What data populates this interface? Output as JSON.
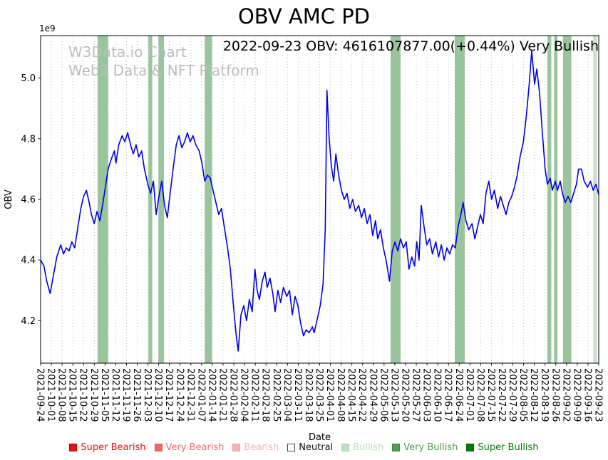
{
  "title": "OBV AMC PD",
  "subtitle": "2022-09-23 OBV: 4616107877.00(+0.44%) Very Bullish",
  "watermark": {
    "line1": "W3Data.io Chart",
    "line2": "Web3 Data & NFT Platform"
  },
  "legend": {
    "items": [
      {
        "label": "Super Bearish",
        "color": "#e81010",
        "border": "#c00000"
      },
      {
        "label": "Very Bearish",
        "color": "#f26a6a",
        "border": "#e05555"
      },
      {
        "label": "Bearish",
        "color": "#f8b4b4",
        "border": "#f0a0a0"
      },
      {
        "label": "Neutral",
        "color": "#111111",
        "swatch": "#ffffff",
        "border": "#444444"
      },
      {
        "label": "Bullish",
        "color": "#bedfbe",
        "border": "#a8d0a8"
      },
      {
        "label": "Very Bullish",
        "color": "#4d9e50",
        "border": "#3d8a40"
      },
      {
        "label": "Super Bullish",
        "color": "#077a07",
        "border": "#056005"
      }
    ]
  },
  "chart_data": {
    "type": "line",
    "title": "OBV AMC PD",
    "xlabel": "Date",
    "ylabel": "OBV",
    "y_offset_label": "1e9",
    "y_unit_multiplier": 1000000000,
    "ylim": [
      4.06,
      5.14
    ],
    "y_ticks": [
      4.2,
      4.4,
      4.6,
      4.8,
      5.0
    ],
    "grid": "vertical-dotted",
    "line_color": "#0000e6",
    "band_colors": {
      "very-bullish": "rgba(70,150,74,0.55)",
      "bullish": "rgba(150,200,150,0.5)"
    },
    "x_tick_labels": [
      "2021-09-24",
      "2021-10-01",
      "2021-10-08",
      "2021-10-15",
      "2021-10-22",
      "2021-10-29",
      "2021-11-05",
      "2021-11-12",
      "2021-11-19",
      "2021-11-26",
      "2021-12-03",
      "2021-12-10",
      "2021-12-17",
      "2021-12-24",
      "2021-12-31",
      "2022-01-07",
      "2022-01-14",
      "2022-01-21",
      "2022-01-28",
      "2022-02-04",
      "2022-02-11",
      "2022-02-18",
      "2022-02-25",
      "2022-03-04",
      "2022-03-11",
      "2022-03-18",
      "2022-03-25",
      "2022-04-01",
      "2022-04-08",
      "2022-04-15",
      "2022-04-22",
      "2022-04-29",
      "2022-05-06",
      "2022-05-13",
      "2022-05-20",
      "2022-05-27",
      "2022-06-03",
      "2022-06-10",
      "2022-06-17",
      "2022-06-24",
      "2022-07-01",
      "2022-07-08",
      "2022-07-15",
      "2022-07-22",
      "2022-07-29",
      "2022-08-05",
      "2022-08-12",
      "2022-08-19",
      "2022-08-26",
      "2022-09-02",
      "2022-09-09",
      "2022-09-16",
      "2022-09-23"
    ],
    "signal_bands": [
      {
        "from": 0.102,
        "to": 0.121,
        "level": "very-bullish"
      },
      {
        "from": 0.193,
        "to": 0.2,
        "level": "very-bullish"
      },
      {
        "from": 0.211,
        "to": 0.221,
        "level": "very-bullish"
      },
      {
        "from": 0.294,
        "to": 0.307,
        "level": "very-bullish"
      },
      {
        "from": 0.627,
        "to": 0.645,
        "level": "very-bullish"
      },
      {
        "from": 0.742,
        "to": 0.76,
        "level": "very-bullish"
      },
      {
        "from": 0.908,
        "to": 0.915,
        "level": "very-bullish"
      },
      {
        "from": 0.92,
        "to": 0.926,
        "level": "very-bullish"
      },
      {
        "from": 0.936,
        "to": 0.951,
        "level": "very-bullish"
      },
      {
        "from": 0.99,
        "to": 0.997,
        "level": "bullish"
      }
    ],
    "series": [
      {
        "name": "OBV",
        "points": [
          [
            0.0,
            4.4
          ],
          [
            0.006,
            4.38
          ],
          [
            0.011,
            4.33
          ],
          [
            0.017,
            4.29
          ],
          [
            0.023,
            4.35
          ],
          [
            0.029,
            4.41
          ],
          [
            0.036,
            4.45
          ],
          [
            0.041,
            4.42
          ],
          [
            0.046,
            4.44
          ],
          [
            0.051,
            4.43
          ],
          [
            0.056,
            4.46
          ],
          [
            0.061,
            4.44
          ],
          [
            0.066,
            4.5
          ],
          [
            0.072,
            4.57
          ],
          [
            0.077,
            4.61
          ],
          [
            0.082,
            4.63
          ],
          [
            0.087,
            4.59
          ],
          [
            0.091,
            4.55
          ],
          [
            0.096,
            4.52
          ],
          [
            0.101,
            4.56
          ],
          [
            0.106,
            4.53
          ],
          [
            0.111,
            4.58
          ],
          [
            0.116,
            4.64
          ],
          [
            0.121,
            4.7
          ],
          [
            0.126,
            4.73
          ],
          [
            0.132,
            4.76
          ],
          [
            0.135,
            4.72
          ],
          [
            0.14,
            4.78
          ],
          [
            0.146,
            4.81
          ],
          [
            0.151,
            4.79
          ],
          [
            0.156,
            4.82
          ],
          [
            0.161,
            4.78
          ],
          [
            0.166,
            4.75
          ],
          [
            0.171,
            4.78
          ],
          [
            0.176,
            4.74
          ],
          [
            0.181,
            4.76
          ],
          [
            0.186,
            4.7
          ],
          [
            0.192,
            4.65
          ],
          [
            0.197,
            4.62
          ],
          [
            0.202,
            4.66
          ],
          [
            0.207,
            4.55
          ],
          [
            0.212,
            4.61
          ],
          [
            0.217,
            4.66
          ],
          [
            0.222,
            4.58
          ],
          [
            0.227,
            4.54
          ],
          [
            0.232,
            4.62
          ],
          [
            0.238,
            4.71
          ],
          [
            0.243,
            4.78
          ],
          [
            0.248,
            4.81
          ],
          [
            0.253,
            4.77
          ],
          [
            0.258,
            4.79
          ],
          [
            0.263,
            4.82
          ],
          [
            0.268,
            4.79
          ],
          [
            0.273,
            4.81
          ],
          [
            0.278,
            4.78
          ],
          [
            0.284,
            4.76
          ],
          [
            0.289,
            4.72
          ],
          [
            0.294,
            4.66
          ],
          [
            0.299,
            4.68
          ],
          [
            0.304,
            4.67
          ],
          [
            0.309,
            4.63
          ],
          [
            0.314,
            4.59
          ],
          [
            0.319,
            4.55
          ],
          [
            0.324,
            4.57
          ],
          [
            0.329,
            4.51
          ],
          [
            0.335,
            4.44
          ],
          [
            0.34,
            4.37
          ],
          [
            0.345,
            4.26
          ],
          [
            0.35,
            4.16
          ],
          [
            0.354,
            4.1
          ],
          [
            0.359,
            4.22
          ],
          [
            0.364,
            4.25
          ],
          [
            0.369,
            4.2
          ],
          [
            0.374,
            4.27
          ],
          [
            0.379,
            4.23
          ],
          [
            0.384,
            4.37
          ],
          [
            0.388,
            4.3
          ],
          [
            0.392,
            4.27
          ],
          [
            0.397,
            4.33
          ],
          [
            0.402,
            4.36
          ],
          [
            0.406,
            4.31
          ],
          [
            0.411,
            4.34
          ],
          [
            0.416,
            4.29
          ],
          [
            0.42,
            4.23
          ],
          [
            0.425,
            4.3
          ],
          [
            0.43,
            4.26
          ],
          [
            0.435,
            4.31
          ],
          [
            0.441,
            4.28
          ],
          [
            0.446,
            4.3
          ],
          [
            0.451,
            4.22
          ],
          [
            0.456,
            4.28
          ],
          [
            0.461,
            4.25
          ],
          [
            0.466,
            4.19
          ],
          [
            0.471,
            4.15
          ],
          [
            0.476,
            4.17
          ],
          [
            0.481,
            4.16
          ],
          [
            0.487,
            4.18
          ],
          [
            0.49,
            4.16
          ],
          [
            0.495,
            4.2
          ],
          [
            0.501,
            4.25
          ],
          [
            0.506,
            4.32
          ],
          [
            0.51,
            4.5
          ],
          [
            0.513,
            4.96
          ],
          [
            0.517,
            4.8
          ],
          [
            0.521,
            4.71
          ],
          [
            0.525,
            4.66
          ],
          [
            0.529,
            4.75
          ],
          [
            0.534,
            4.68
          ],
          [
            0.539,
            4.63
          ],
          [
            0.544,
            4.6
          ],
          [
            0.549,
            4.62
          ],
          [
            0.554,
            4.57
          ],
          [
            0.559,
            4.6
          ],
          [
            0.564,
            4.56
          ],
          [
            0.57,
            4.58
          ],
          [
            0.575,
            4.54
          ],
          [
            0.58,
            4.57
          ],
          [
            0.585,
            4.52
          ],
          [
            0.59,
            4.55
          ],
          [
            0.595,
            4.48
          ],
          [
            0.6,
            4.53
          ],
          [
            0.604,
            4.47
          ],
          [
            0.609,
            4.5
          ],
          [
            0.614,
            4.44
          ],
          [
            0.619,
            4.4
          ],
          [
            0.625,
            4.33
          ],
          [
            0.63,
            4.43
          ],
          [
            0.635,
            4.46
          ],
          [
            0.64,
            4.43
          ],
          [
            0.645,
            4.47
          ],
          [
            0.65,
            4.44
          ],
          [
            0.655,
            4.46
          ],
          [
            0.66,
            4.37
          ],
          [
            0.665,
            4.41
          ],
          [
            0.67,
            4.38
          ],
          [
            0.674,
            4.46
          ],
          [
            0.678,
            4.4
          ],
          [
            0.682,
            4.58
          ],
          [
            0.687,
            4.51
          ],
          [
            0.692,
            4.45
          ],
          [
            0.697,
            4.47
          ],
          [
            0.702,
            4.42
          ],
          [
            0.708,
            4.46
          ],
          [
            0.713,
            4.41
          ],
          [
            0.718,
            4.45
          ],
          [
            0.723,
            4.4
          ],
          [
            0.728,
            4.44
          ],
          [
            0.733,
            4.42
          ],
          [
            0.738,
            4.45
          ],
          [
            0.743,
            4.44
          ],
          [
            0.748,
            4.51
          ],
          [
            0.753,
            4.55
          ],
          [
            0.757,
            4.59
          ],
          [
            0.762,
            4.53
          ],
          [
            0.767,
            4.5
          ],
          [
            0.773,
            4.52
          ],
          [
            0.778,
            4.47
          ],
          [
            0.783,
            4.51
          ],
          [
            0.788,
            4.55
          ],
          [
            0.793,
            4.52
          ],
          [
            0.798,
            4.62
          ],
          [
            0.803,
            4.66
          ],
          [
            0.808,
            4.6
          ],
          [
            0.813,
            4.63
          ],
          [
            0.819,
            4.57
          ],
          [
            0.824,
            4.61
          ],
          [
            0.829,
            4.58
          ],
          [
            0.834,
            4.55
          ],
          [
            0.839,
            4.59
          ],
          [
            0.844,
            4.61
          ],
          [
            0.849,
            4.64
          ],
          [
            0.854,
            4.68
          ],
          [
            0.859,
            4.74
          ],
          [
            0.865,
            4.79
          ],
          [
            0.87,
            4.87
          ],
          [
            0.875,
            4.97
          ],
          [
            0.88,
            5.09
          ],
          [
            0.885,
            4.98
          ],
          [
            0.889,
            5.03
          ],
          [
            0.894,
            4.95
          ],
          [
            0.899,
            4.82
          ],
          [
            0.904,
            4.7
          ],
          [
            0.908,
            4.65
          ],
          [
            0.913,
            4.67
          ],
          [
            0.917,
            4.63
          ],
          [
            0.922,
            4.66
          ],
          [
            0.926,
            4.63
          ],
          [
            0.931,
            4.66
          ],
          [
            0.935,
            4.62
          ],
          [
            0.94,
            4.59
          ],
          [
            0.945,
            4.61
          ],
          [
            0.95,
            4.59
          ],
          [
            0.955,
            4.62
          ],
          [
            0.96,
            4.65
          ],
          [
            0.964,
            4.7
          ],
          [
            0.969,
            4.7
          ],
          [
            0.974,
            4.66
          ],
          [
            0.98,
            4.64
          ],
          [
            0.985,
            4.66
          ],
          [
            0.99,
            4.63
          ],
          [
            0.995,
            4.65
          ],
          [
            1.0,
            4.616
          ]
        ]
      }
    ],
    "latest": {
      "date": "2022-09-23",
      "obv": "4616107877.00",
      "change": "+0.44%",
      "signal": "Very Bullish"
    }
  }
}
